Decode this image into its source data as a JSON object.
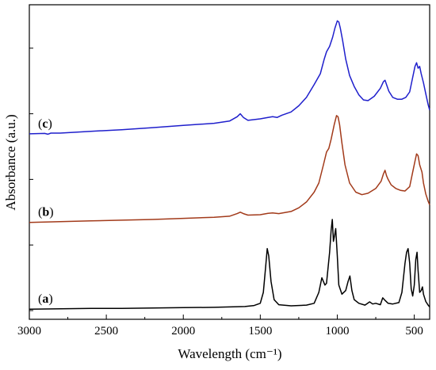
{
  "chart_data": {
    "type": "line",
    "xlabel": "Wavelength (cm⁻¹)",
    "ylabel": "Absorbance (a.u.)",
    "xlim": [
      3000,
      400
    ],
    "x_reversed": true,
    "x_ticks": [
      3000,
      2500,
      2000,
      1500,
      1000,
      500
    ],
    "y_ticks_labeled": false,
    "grid": false,
    "legend": "none",
    "series": [
      {
        "name": "(a)",
        "label_parts": [
          "(",
          "a",
          ")"
        ],
        "color": "#000000",
        "offset": 0.0,
        "points": [
          [
            3000,
            0.04
          ],
          [
            2800,
            0.05
          ],
          [
            2600,
            0.06
          ],
          [
            2400,
            0.06
          ],
          [
            2200,
            0.07
          ],
          [
            2000,
            0.08
          ],
          [
            1800,
            0.09
          ],
          [
            1700,
            0.1
          ],
          [
            1600,
            0.11
          ],
          [
            1540,
            0.14
          ],
          [
            1500,
            0.2
          ],
          [
            1480,
            0.5
          ],
          [
            1465,
            1.2
          ],
          [
            1455,
            1.7
          ],
          [
            1445,
            1.5
          ],
          [
            1430,
            0.8
          ],
          [
            1410,
            0.3
          ],
          [
            1380,
            0.16
          ],
          [
            1300,
            0.13
          ],
          [
            1200,
            0.15
          ],
          [
            1150,
            0.2
          ],
          [
            1120,
            0.5
          ],
          [
            1100,
            0.9
          ],
          [
            1080,
            0.7
          ],
          [
            1070,
            0.75
          ],
          [
            1050,
            1.6
          ],
          [
            1040,
            2.2
          ],
          [
            1032,
            2.5
          ],
          [
            1025,
            1.9
          ],
          [
            1018,
            2.05
          ],
          [
            1010,
            2.25
          ],
          [
            1000,
            1.5
          ],
          [
            990,
            0.7
          ],
          [
            970,
            0.45
          ],
          [
            945,
            0.55
          ],
          [
            930,
            0.8
          ],
          [
            918,
            0.95
          ],
          [
            905,
            0.55
          ],
          [
            890,
            0.3
          ],
          [
            860,
            0.2
          ],
          [
            820,
            0.15
          ],
          [
            790,
            0.24
          ],
          [
            770,
            0.18
          ],
          [
            750,
            0.2
          ],
          [
            720,
            0.16
          ],
          [
            705,
            0.35
          ],
          [
            690,
            0.28
          ],
          [
            670,
            0.2
          ],
          [
            640,
            0.18
          ],
          [
            600,
            0.22
          ],
          [
            580,
            0.5
          ],
          [
            560,
            1.3
          ],
          [
            550,
            1.6
          ],
          [
            540,
            1.7
          ],
          [
            530,
            1.3
          ],
          [
            520,
            0.6
          ],
          [
            510,
            0.4
          ],
          [
            500,
            0.7
          ],
          [
            490,
            1.4
          ],
          [
            482,
            1.6
          ],
          [
            475,
            1.1
          ],
          [
            465,
            0.5
          ],
          [
            455,
            0.55
          ],
          [
            447,
            0.65
          ],
          [
            440,
            0.45
          ],
          [
            425,
            0.25
          ],
          [
            410,
            0.15
          ],
          [
            400,
            0.1
          ]
        ]
      },
      {
        "name": "(b)",
        "label_parts": [
          "(",
          "b",
          ")"
        ],
        "color": "#A23A1A",
        "offset": 2.4,
        "points": [
          [
            3000,
            0.02
          ],
          [
            2800,
            0.04
          ],
          [
            2600,
            0.06
          ],
          [
            2400,
            0.08
          ],
          [
            2200,
            0.1
          ],
          [
            2000,
            0.13
          ],
          [
            1800,
            0.16
          ],
          [
            1700,
            0.19
          ],
          [
            1650,
            0.26
          ],
          [
            1630,
            0.3
          ],
          [
            1610,
            0.26
          ],
          [
            1580,
            0.22
          ],
          [
            1500,
            0.23
          ],
          [
            1450,
            0.27
          ],
          [
            1420,
            0.28
          ],
          [
            1380,
            0.26
          ],
          [
            1300,
            0.32
          ],
          [
            1250,
            0.42
          ],
          [
            1200,
            0.58
          ],
          [
            1150,
            0.85
          ],
          [
            1120,
            1.1
          ],
          [
            1090,
            1.6
          ],
          [
            1070,
            1.95
          ],
          [
            1055,
            2.05
          ],
          [
            1040,
            2.3
          ],
          [
            1020,
            2.7
          ],
          [
            1005,
            2.95
          ],
          [
            995,
            2.92
          ],
          [
            985,
            2.7
          ],
          [
            970,
            2.2
          ],
          [
            950,
            1.6
          ],
          [
            920,
            1.1
          ],
          [
            880,
            0.85
          ],
          [
            840,
            0.78
          ],
          [
            800,
            0.82
          ],
          [
            750,
            0.95
          ],
          [
            715,
            1.15
          ],
          [
            700,
            1.35
          ],
          [
            690,
            1.45
          ],
          [
            680,
            1.3
          ],
          [
            670,
            1.2
          ],
          [
            650,
            1.05
          ],
          [
            620,
            0.95
          ],
          [
            590,
            0.9
          ],
          [
            560,
            0.88
          ],
          [
            530,
            1.0
          ],
          [
            510,
            1.4
          ],
          [
            495,
            1.7
          ],
          [
            485,
            1.9
          ],
          [
            475,
            1.85
          ],
          [
            465,
            1.6
          ],
          [
            450,
            1.4
          ],
          [
            440,
            1.1
          ],
          [
            425,
            0.8
          ],
          [
            410,
            0.6
          ],
          [
            400,
            0.5
          ]
        ]
      },
      {
        "name": "(c)",
        "label_parts": [
          "(",
          "c",
          ")"
        ],
        "color": "#1F1FCC",
        "offset": 4.8,
        "points": [
          [
            3000,
            0.05
          ],
          [
            2900,
            0.06
          ],
          [
            2880,
            0.04
          ],
          [
            2860,
            0.07
          ],
          [
            2800,
            0.07
          ],
          [
            2600,
            0.12
          ],
          [
            2400,
            0.16
          ],
          [
            2200,
            0.22
          ],
          [
            2000,
            0.28
          ],
          [
            1800,
            0.34
          ],
          [
            1700,
            0.4
          ],
          [
            1650,
            0.52
          ],
          [
            1630,
            0.6
          ],
          [
            1610,
            0.5
          ],
          [
            1580,
            0.42
          ],
          [
            1500,
            0.46
          ],
          [
            1450,
            0.5
          ],
          [
            1420,
            0.52
          ],
          [
            1390,
            0.5
          ],
          [
            1360,
            0.56
          ],
          [
            1300,
            0.65
          ],
          [
            1250,
            0.82
          ],
          [
            1200,
            1.05
          ],
          [
            1150,
            1.4
          ],
          [
            1110,
            1.7
          ],
          [
            1085,
            2.1
          ],
          [
            1070,
            2.3
          ],
          [
            1050,
            2.45
          ],
          [
            1030,
            2.7
          ],
          [
            1015,
            2.95
          ],
          [
            1000,
            3.15
          ],
          [
            990,
            3.12
          ],
          [
            980,
            2.95
          ],
          [
            965,
            2.6
          ],
          [
            945,
            2.1
          ],
          [
            920,
            1.65
          ],
          [
            890,
            1.35
          ],
          [
            860,
            1.12
          ],
          [
            830,
            0.98
          ],
          [
            800,
            0.96
          ],
          [
            760,
            1.08
          ],
          [
            720,
            1.3
          ],
          [
            700,
            1.48
          ],
          [
            690,
            1.52
          ],
          [
            680,
            1.4
          ],
          [
            665,
            1.22
          ],
          [
            640,
            1.05
          ],
          [
            610,
            1.0
          ],
          [
            580,
            1.0
          ],
          [
            555,
            1.05
          ],
          [
            530,
            1.2
          ],
          [
            510,
            1.6
          ],
          [
            495,
            1.9
          ],
          [
            485,
            2.0
          ],
          [
            475,
            1.85
          ],
          [
            465,
            1.9
          ],
          [
            455,
            1.7
          ],
          [
            440,
            1.45
          ],
          [
            425,
            1.15
          ],
          [
            410,
            0.85
          ],
          [
            400,
            0.7
          ]
        ]
      }
    ]
  }
}
